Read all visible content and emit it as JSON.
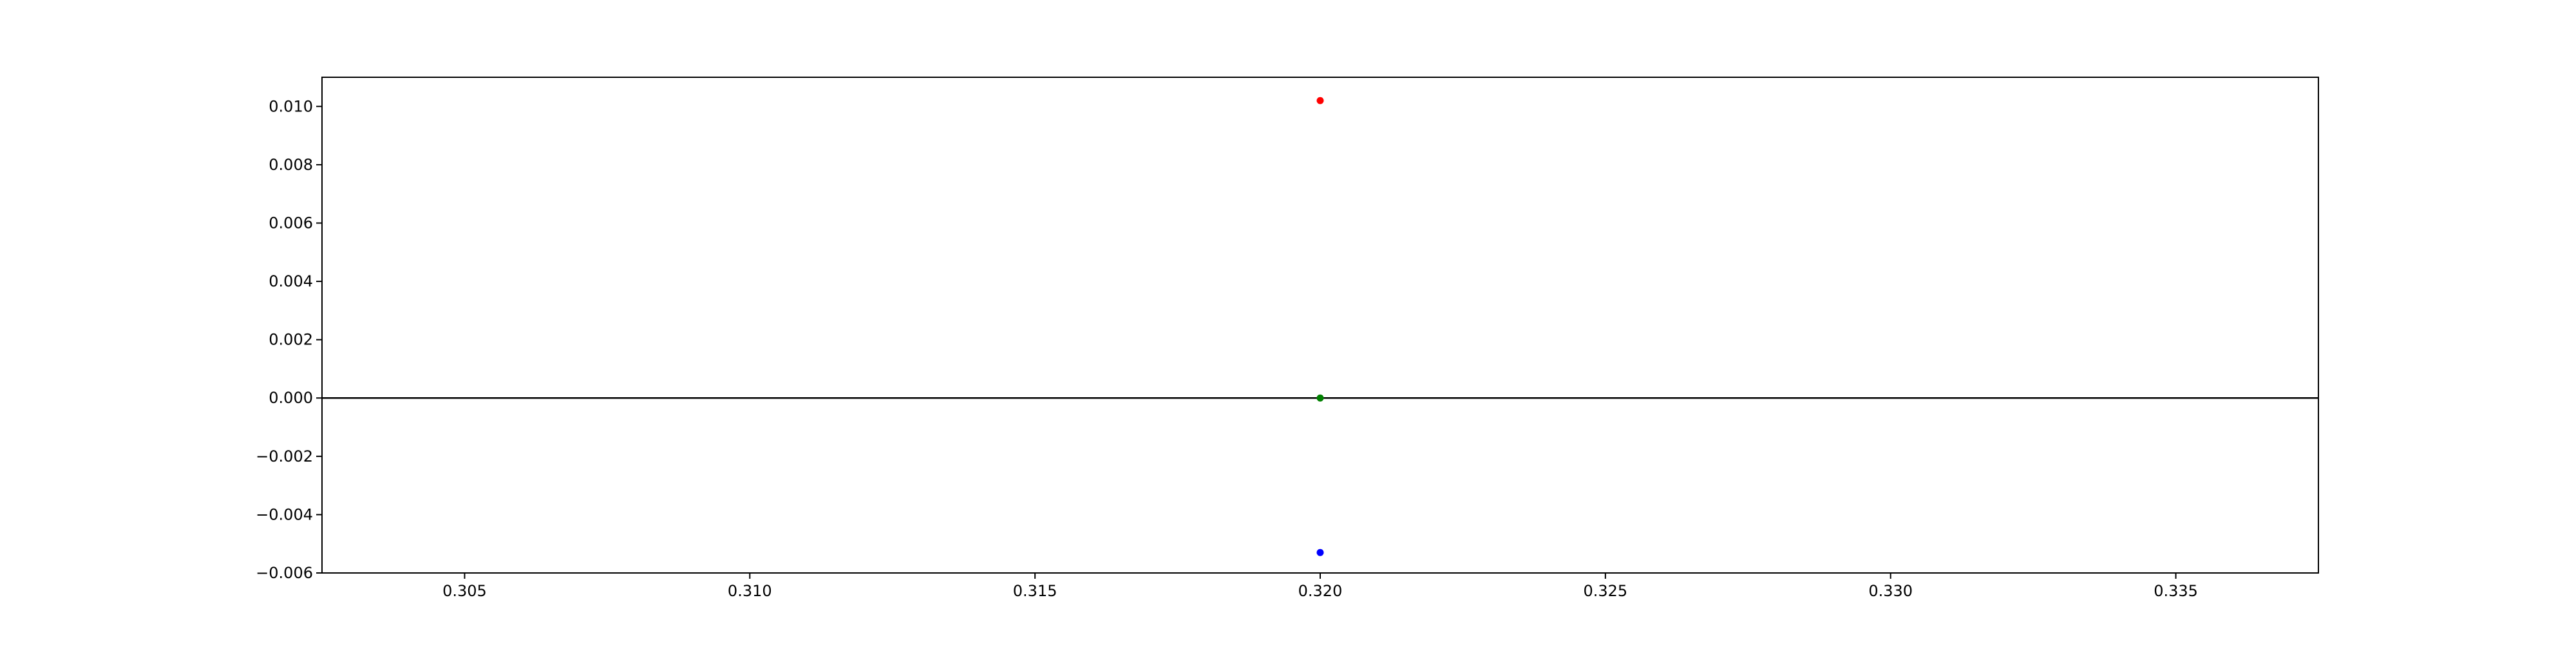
{
  "chart_data": {
    "type": "scatter",
    "title": "",
    "xlabel": "",
    "ylabel": "",
    "xlim": [
      0.3025,
      0.3375
    ],
    "ylim": [
      -0.006,
      0.011
    ],
    "x_ticks": [
      0.305,
      0.31,
      0.315,
      0.32,
      0.325,
      0.33,
      0.335
    ],
    "x_tick_labels": [
      "0.305",
      "0.310",
      "0.315",
      "0.320",
      "0.325",
      "0.330",
      "0.335"
    ],
    "y_ticks": [
      -0.006,
      -0.004,
      -0.002,
      0.0,
      0.002,
      0.004,
      0.006,
      0.008,
      0.01
    ],
    "y_tick_labels": [
      "−0.006",
      "−0.004",
      "−0.002",
      "0.000",
      "0.002",
      "0.004",
      "0.006",
      "0.008",
      "0.010"
    ],
    "grid": false,
    "reference_lines": [
      {
        "axis": "y",
        "value": 0.0,
        "color": "#000000"
      }
    ],
    "series": [
      {
        "color": "#ff0000",
        "points": [
          {
            "x": 0.32,
            "y": 0.0102
          }
        ]
      },
      {
        "color": "#008000",
        "points": [
          {
            "x": 0.32,
            "y": 0.0
          }
        ]
      },
      {
        "color": "#0000ff",
        "points": [
          {
            "x": 0.32,
            "y": -0.0053
          }
        ]
      }
    ]
  }
}
